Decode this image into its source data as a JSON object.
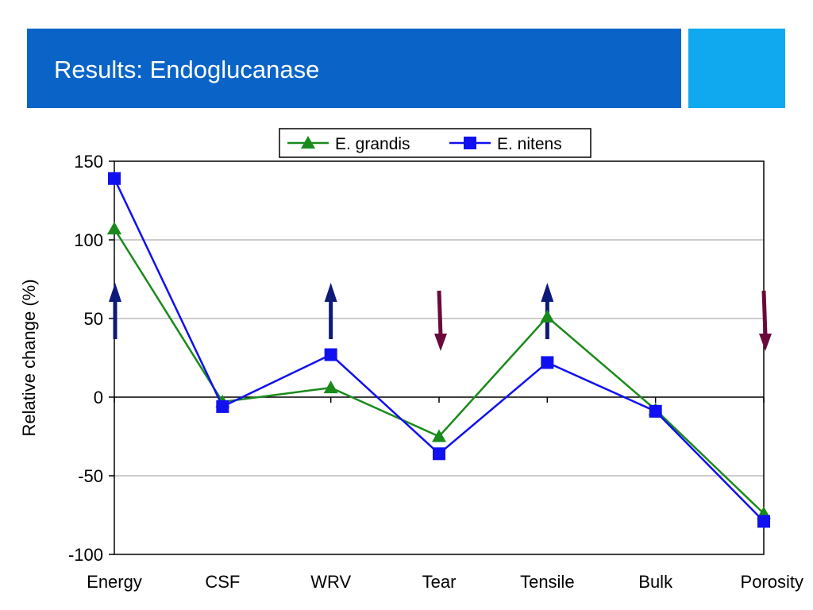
{
  "slide": {
    "title": "Results: Endoglucanase",
    "colors": {
      "header": "#0a64c8",
      "accent": "#10a8ee"
    }
  },
  "chart_data": {
    "type": "line",
    "title": "",
    "xlabel": "",
    "ylabel": "Relative change (%)",
    "categories": [
      "Energy",
      "CSF",
      "WRV",
      "Tear",
      "Tensile",
      "Bulk",
      "Porosity"
    ],
    "ylim": [
      -100,
      150
    ],
    "yticks": [
      150,
      100,
      50,
      0,
      -50,
      -100
    ],
    "grid": true,
    "legend": "top-center",
    "series": [
      {
        "name": "E. grandis",
        "values": [
          107,
          -3,
          6,
          -25,
          51,
          -8,
          -74
        ],
        "color": "#1a8a1a",
        "marker": "triangle"
      },
      {
        "name": "E. nitens",
        "values": [
          139,
          -6,
          27,
          -36,
          22,
          -9,
          -79
        ],
        "color": "#1010f0",
        "marker": "square"
      }
    ],
    "annotations": [
      {
        "category": "Energy",
        "direction": "up",
        "color": "#0d1a7a"
      },
      {
        "category": "WRV",
        "direction": "up",
        "color": "#0d1a7a"
      },
      {
        "category": "Tear",
        "direction": "down",
        "color": "#6a0a3a"
      },
      {
        "category": "Tensile",
        "direction": "up",
        "color": "#0d1a7a"
      },
      {
        "category": "Porosity",
        "direction": "down",
        "color": "#6a0a3a"
      }
    ]
  }
}
